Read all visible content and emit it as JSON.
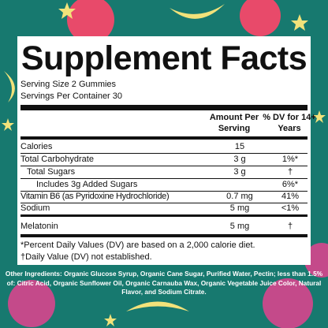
{
  "title": "Supplement Facts",
  "serving_size": "Serving Size 2 Gummies",
  "servings_per_container": "Servings Per Container 30",
  "columns": [
    "Amount Per Serving",
    "% DV for 14+ Years"
  ],
  "rows": [
    {
      "name": "Calories",
      "amount": "15"
    },
    {
      "name": "Total Carbohydrate",
      "amount": "3 g",
      "dv": "1%*"
    },
    {
      "name": "Total Sugars",
      "amount": "3 g",
      "dv": "†"
    },
    {
      "name": "Includes 3g Added Sugars",
      "dv": "6%*"
    },
    {
      "name": "Vitamin B6 (as Pyridoxine Hydrochloride)",
      "amount": "0.7 mg",
      "dv": "41%"
    },
    {
      "name": "Sodium",
      "amount": "5 mg",
      "dv": "<1%"
    },
    {
      "name": "Melatonin",
      "amount": "5 mg",
      "dv": "†"
    }
  ],
  "footnotes": [
    "*Percent Daily Values (DV) are based on a 2,000 calorie diet.",
    "†Daily Value (DV) not established."
  ],
  "other_ingredients": "Other Ingredients: Organic Glucose Syrup, Organic Cane Sugar, Purified Water, Pectin; less than 1.5% of: Citric Acid, Organic Sunflower Oil, Organic Carnauba Wax, Organic Vegetable Juice Color, Natural Flavor, and Sodium Citrate."
}
